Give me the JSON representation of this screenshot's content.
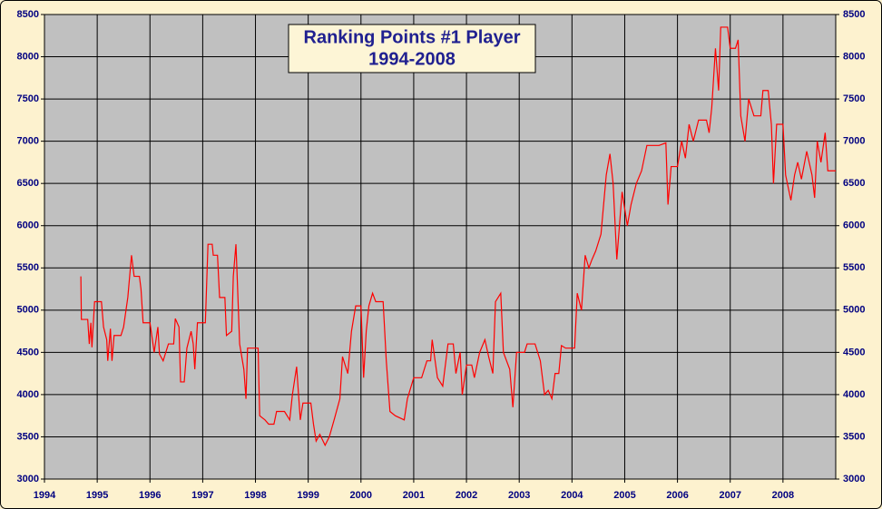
{
  "chart_data": {
    "type": "line",
    "title": "Ranking Points  #1 Player",
    "subtitle": "1994-2008",
    "xlim": [
      1994,
      2009
    ],
    "xticks": [
      1994,
      1995,
      1996,
      1997,
      1998,
      1999,
      2000,
      2001,
      2002,
      2003,
      2004,
      2005,
      2006,
      2007,
      2008
    ],
    "ylim": [
      3000,
      8500
    ],
    "yticks": [
      3000,
      3500,
      4000,
      4500,
      5000,
      5500,
      6000,
      6500,
      7000,
      7500,
      8000,
      8500
    ],
    "grid": true,
    "right_axis": true,
    "x": [
      1994.69,
      1994.7,
      1994.82,
      1994.85,
      1994.88,
      1994.9,
      1994.95,
      1995.08,
      1995.12,
      1995.18,
      1995.2,
      1995.25,
      1995.28,
      1995.32,
      1995.45,
      1995.5,
      1995.58,
      1995.65,
      1995.7,
      1995.8,
      1995.83,
      1995.87,
      1996.0,
      1996.08,
      1996.15,
      1996.18,
      1996.25,
      1996.35,
      1996.45,
      1996.48,
      1996.55,
      1996.58,
      1996.65,
      1996.7,
      1996.78,
      1996.82,
      1996.85,
      1996.9,
      1997.05,
      1997.1,
      1997.18,
      1997.2,
      1997.28,
      1997.32,
      1997.42,
      1997.45,
      1997.55,
      1997.58,
      1997.63,
      1997.65,
      1997.7,
      1997.78,
      1997.82,
      1997.85,
      1998.05,
      1998.08,
      1998.18,
      1998.25,
      1998.35,
      1998.4,
      1998.55,
      1998.65,
      1998.7,
      1998.78,
      1998.85,
      1998.9,
      1999.05,
      1999.1,
      1999.15,
      1999.22,
      1999.32,
      1999.4,
      1999.5,
      1999.6,
      1999.65,
      1999.75,
      1999.82,
      1999.9,
      2000.0,
      2000.05,
      2000.1,
      2000.15,
      2000.22,
      2000.28,
      2000.42,
      2000.48,
      2000.55,
      2000.65,
      2000.82,
      2000.88,
      2001.0,
      2001.15,
      2001.25,
      2001.32,
      2001.35,
      2001.45,
      2001.55,
      2001.65,
      2001.75,
      2001.8,
      2001.88,
      2001.92,
      2002.0,
      2002.1,
      2002.15,
      2002.25,
      2002.35,
      2002.42,
      2002.5,
      2002.55,
      2002.65,
      2002.7,
      2002.82,
      2002.88,
      2002.95,
      2003.1,
      2003.15,
      2003.3,
      2003.4,
      2003.48,
      2003.55,
      2003.62,
      2003.68,
      2003.75,
      2003.8,
      2003.88,
      2004.05,
      2004.1,
      2004.18,
      2004.25,
      2004.32,
      2004.38,
      2004.45,
      2004.55,
      2004.65,
      2004.72,
      2004.78,
      2004.85,
      2004.95,
      2005.05,
      2005.12,
      2005.22,
      2005.32,
      2005.42,
      2005.55,
      2005.65,
      2005.78,
      2005.82,
      2005.88,
      2006.0,
      2006.08,
      2006.15,
      2006.22,
      2006.3,
      2006.4,
      2006.55,
      2006.6,
      2006.65,
      2006.72,
      2006.78,
      2006.82,
      2006.95,
      2007.0,
      2007.1,
      2007.15,
      2007.2,
      2007.28,
      2007.35,
      2007.45,
      2007.58,
      2007.62,
      2007.72,
      2007.78,
      2007.82,
      2007.88,
      2008.0,
      2008.05,
      2008.15,
      2008.22,
      2008.28,
      2008.35,
      2008.45,
      2008.55,
      2008.6,
      2008.65,
      2008.72,
      2008.8,
      2008.85,
      2009.0
    ],
    "series": [
      {
        "color": "#ff0000",
        "values": [
          5400,
          4890,
          4890,
          4600,
          4850,
          4560,
          5100,
          5100,
          4800,
          4650,
          4400,
          4780,
          4400,
          4700,
          4700,
          4800,
          5150,
          5650,
          5400,
          5400,
          5250,
          4850,
          4850,
          4500,
          4800,
          4480,
          4400,
          4600,
          4600,
          4900,
          4800,
          4150,
          4150,
          4550,
          4750,
          4600,
          4300,
          4850,
          4850,
          5780,
          5780,
          5650,
          5650,
          5150,
          5150,
          4700,
          4750,
          5400,
          5780,
          5450,
          4600,
          4300,
          3950,
          4550,
          4550,
          3750,
          3700,
          3650,
          3650,
          3800,
          3800,
          3700,
          4000,
          4330,
          3700,
          3900,
          3900,
          3650,
          3450,
          3530,
          3400,
          3500,
          3720,
          3950,
          4450,
          4250,
          4750,
          5050,
          5050,
          4200,
          4750,
          5050,
          5200,
          5100,
          5100,
          4400,
          3800,
          3750,
          3700,
          3950,
          4200,
          4200,
          4400,
          4400,
          4650,
          4200,
          4100,
          4600,
          4600,
          4250,
          4500,
          4000,
          4350,
          4350,
          4200,
          4500,
          4650,
          4450,
          4250,
          5100,
          5200,
          4500,
          4300,
          3850,
          4500,
          4500,
          4600,
          4600,
          4400,
          4000,
          4050,
          3950,
          4250,
          4250,
          4580,
          4550,
          4550,
          5200,
          5000,
          5650,
          5500,
          5600,
          5700,
          5900,
          6600,
          6850,
          6500,
          5600,
          6400,
          6000,
          6250,
          6500,
          6650,
          6950,
          6950,
          6950,
          6980,
          6250,
          6700,
          6700,
          7000,
          6800,
          7200,
          7000,
          7250,
          7250,
          7100,
          7400,
          8100,
          7600,
          8350,
          8350,
          8100,
          8100,
          8200,
          7300,
          7000,
          7500,
          7300,
          7300,
          7600,
          7600,
          7200,
          6500,
          7200,
          7200,
          6600,
          6300,
          6600,
          6750,
          6550,
          6880,
          6600,
          6330,
          7000,
          6750,
          7100,
          6650,
          6650
        ]
      }
    ]
  }
}
